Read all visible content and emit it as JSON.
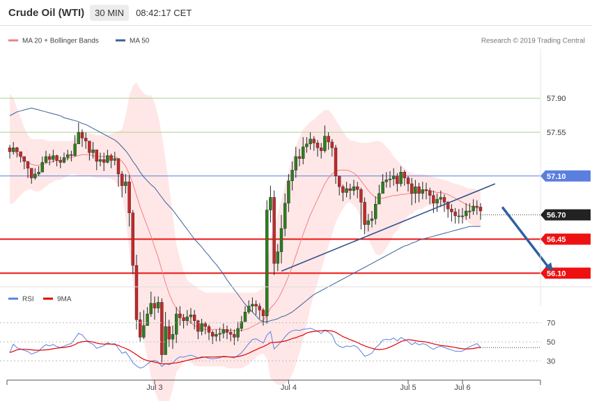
{
  "header": {
    "title": "Crude Oil (WTI)",
    "timeframe": "30 MIN",
    "time": "08:42:17 CET"
  },
  "legend": {
    "items": [
      {
        "label": "MA 20 + Bollinger Bands",
        "color": "#f08080"
      },
      {
        "label": "MA 50",
        "color": "#3a5f9a"
      }
    ],
    "credit": "Research © 2019 Trading Central"
  },
  "rsi_legend": {
    "items": [
      {
        "label": "RSI",
        "color": "#5b7fde"
      },
      {
        "label": "9MA",
        "color": "#e00000"
      }
    ]
  },
  "chart_data": {
    "type": "candlestick",
    "price_axis": {
      "range": [
        55.83,
        58.41
      ],
      "levels": [
        {
          "label": "57.90",
          "value": 57.9,
          "style": "green"
        },
        {
          "label": "57.55",
          "value": 57.55,
          "style": "green"
        },
        {
          "label": "57.10",
          "value": 57.1,
          "style": "blue"
        },
        {
          "label": "56.70",
          "value": 56.7,
          "style": "current"
        },
        {
          "label": "56.45",
          "value": 56.45,
          "style": "red"
        },
        {
          "label": "56.10",
          "value": 56.1,
          "style": "red"
        }
      ]
    },
    "rsi_axis": {
      "range": [
        15,
        85
      ],
      "ticks": [
        "70",
        "50",
        "30"
      ],
      "tick_values": [
        70,
        50,
        30
      ]
    },
    "x_labels": [
      {
        "label": "Jul 3",
        "bar": 40
      },
      {
        "label": "Jul 4",
        "bar": 77
      },
      {
        "label": "Jul 5",
        "bar": 110
      },
      {
        "label": "Jul 6",
        "bar": 125
      }
    ],
    "candle_close": [
      57.35,
      57.39,
      57.35,
      57.3,
      57.25,
      57.18,
      57.08,
      57.12,
      57.14,
      57.24,
      57.3,
      57.27,
      57.31,
      57.26,
      57.24,
      57.29,
      57.32,
      57.31,
      57.43,
      57.55,
      57.49,
      57.46,
      57.34,
      57.37,
      57.25,
      57.27,
      57.24,
      57.31,
      57.26,
      57.28,
      57.12,
      57.0,
      57.04,
      56.72,
      56.18,
      55.62,
      55.44,
      55.56,
      55.68,
      55.79,
      55.74,
      55.8,
      55.26,
      55.55,
      55.42,
      55.47,
      55.68,
      55.64,
      55.61,
      55.65,
      55.67,
      55.61,
      55.5,
      55.58,
      55.55,
      55.49,
      55.45,
      55.47,
      55.48,
      55.52,
      55.49,
      55.47,
      55.44,
      55.53,
      55.6,
      55.7,
      55.76,
      55.78,
      55.76,
      55.72,
      55.66,
      56.75,
      56.88,
      56.2,
      56.32,
      56.56,
      56.82,
      57.05,
      57.16,
      57.3,
      57.28,
      57.4,
      57.43,
      57.48,
      57.44,
      57.39,
      57.36,
      57.51,
      57.45,
      57.39,
      57.1,
      56.99,
      56.93,
      56.97,
      56.95,
      56.99,
      56.96,
      56.83,
      56.6,
      56.64,
      56.66,
      56.81,
      56.92,
      57.04,
      57.06,
      57.07,
      57.1,
      57.02,
      57.14,
      57.08,
      57.02,
      56.92,
      56.99,
      56.92,
      56.96,
      56.95,
      56.9,
      56.82,
      56.86,
      56.88,
      56.83,
      56.76,
      56.73,
      56.69,
      56.69,
      56.69,
      56.74,
      56.74,
      56.79,
      56.78,
      56.74
    ],
    "candle_high": [
      57.42,
      57.45,
      57.4,
      57.35,
      57.3,
      57.23,
      57.15,
      57.18,
      57.2,
      57.3,
      57.36,
      57.33,
      57.37,
      57.32,
      57.3,
      57.34,
      57.37,
      57.36,
      57.52,
      57.65,
      57.58,
      57.55,
      57.42,
      57.45,
      57.32,
      57.34,
      57.34,
      57.37,
      57.33,
      57.35,
      57.2,
      57.15,
      57.12,
      57.11,
      56.75,
      56.29,
      55.7,
      55.72,
      55.75,
      55.91,
      55.86,
      55.86,
      55.84,
      55.7,
      55.62,
      55.56,
      55.75,
      55.76,
      55.68,
      55.72,
      55.74,
      55.72,
      55.62,
      55.63,
      55.6,
      55.57,
      55.51,
      55.52,
      55.54,
      55.58,
      55.56,
      55.53,
      55.52,
      55.6,
      55.66,
      55.76,
      55.82,
      55.85,
      55.82,
      55.79,
      55.74,
      56.85,
      57.0,
      56.95,
      56.4,
      56.7,
      56.92,
      57.12,
      57.25,
      57.4,
      57.38,
      57.5,
      57.5,
      57.55,
      57.51,
      57.47,
      57.44,
      57.62,
      57.55,
      57.48,
      57.42,
      57.1,
      57.01,
      57.04,
      57.02,
      57.06,
      57.04,
      56.98,
      56.88,
      56.71,
      56.74,
      56.89,
      57.01,
      57.12,
      57.14,
      57.15,
      57.18,
      57.13,
      57.2,
      57.16,
      57.1,
      57.08,
      57.06,
      57.03,
      57.04,
      57.03,
      56.98,
      56.95,
      56.92,
      56.95,
      56.91,
      56.84,
      56.81,
      56.77,
      56.76,
      56.77,
      56.82,
      56.82,
      56.86,
      56.85,
      56.82
    ],
    "candle_low": [
      57.28,
      57.32,
      57.29,
      57.24,
      57.17,
      57.08,
      57.02,
      57.06,
      57.1,
      57.16,
      57.23,
      57.21,
      57.24,
      57.2,
      57.18,
      57.23,
      57.26,
      57.25,
      57.3,
      57.44,
      57.4,
      57.38,
      57.26,
      57.28,
      57.16,
      57.2,
      57.15,
      57.23,
      57.18,
      57.21,
      56.99,
      56.88,
      56.92,
      56.58,
      56.09,
      55.52,
      55.39,
      55.42,
      55.6,
      55.65,
      55.62,
      55.69,
      55.18,
      55.3,
      55.34,
      55.32,
      55.38,
      55.56,
      55.53,
      55.56,
      55.58,
      55.52,
      55.42,
      55.46,
      55.47,
      55.41,
      55.37,
      55.4,
      55.4,
      55.43,
      55.42,
      55.4,
      55.36,
      55.4,
      55.5,
      55.62,
      55.68,
      55.7,
      55.67,
      55.63,
      55.56,
      55.58,
      56.62,
      56.08,
      56.12,
      56.2,
      56.48,
      56.73,
      56.95,
      57.08,
      57.2,
      57.22,
      57.34,
      57.37,
      57.36,
      57.3,
      57.28,
      57.34,
      57.37,
      57.3,
      57.02,
      56.9,
      56.84,
      56.88,
      56.86,
      56.9,
      56.87,
      56.55,
      56.5,
      56.53,
      56.57,
      56.6,
      56.85,
      56.95,
      56.98,
      56.98,
      57.0,
      56.94,
      56.99,
      57.0,
      56.94,
      56.8,
      56.82,
      56.83,
      56.86,
      56.86,
      56.81,
      56.72,
      56.73,
      56.78,
      56.73,
      56.67,
      56.63,
      56.61,
      56.61,
      56.61,
      56.65,
      56.66,
      56.7,
      56.7,
      56.65
    ],
    "ma20": [
      57.38,
      57.36,
      57.33,
      57.3,
      57.27,
      57.24,
      57.22,
      57.21,
      57.21,
      57.22,
      57.23,
      57.24,
      57.25,
      57.26,
      57.26,
      57.27,
      57.28,
      57.29,
      57.3,
      57.31,
      57.32,
      57.32,
      57.32,
      57.31,
      57.3,
      57.3,
      57.3,
      57.3,
      57.3,
      57.3,
      57.28,
      57.25,
      57.2,
      57.12,
      57.02,
      56.9,
      56.78,
      56.68,
      56.58,
      56.48,
      56.37,
      56.26,
      56.13,
      56.0,
      55.89,
      55.8,
      55.74,
      55.69,
      55.65,
      55.62,
      55.59,
      55.56,
      55.54,
      55.53,
      55.52,
      55.52,
      55.52,
      55.52,
      55.52,
      55.52,
      55.51,
      55.51,
      55.51,
      55.51,
      55.51,
      55.52,
      55.53,
      55.55,
      55.57,
      55.59,
      55.61,
      55.67,
      55.74,
      55.78,
      55.83,
      55.9,
      55.98,
      56.07,
      56.17,
      56.28,
      56.39,
      56.5,
      56.6,
      56.7,
      56.78,
      56.86,
      56.94,
      57.02,
      57.08,
      57.12,
      57.15,
      57.16,
      57.16,
      57.16,
      57.15,
      57.13,
      57.1,
      57.05,
      57.0,
      56.95,
      56.91,
      56.88,
      56.87,
      56.87,
      56.88,
      56.89,
      56.9,
      56.9,
      56.91,
      56.91,
      56.92,
      56.92,
      56.93,
      56.94,
      56.94,
      56.95,
      56.95,
      56.94,
      56.93,
      56.93,
      56.92,
      56.91,
      56.89,
      56.87,
      56.85,
      56.83,
      56.81,
      56.79,
      56.78,
      56.77,
      56.77
    ],
    "bb_upper": [
      57.95,
      57.9,
      57.8,
      57.7,
      57.6,
      57.52,
      57.48,
      57.48,
      57.48,
      57.48,
      57.47,
      57.46,
      57.46,
      57.46,
      57.46,
      57.46,
      57.46,
      57.46,
      57.48,
      57.52,
      57.54,
      57.54,
      57.54,
      57.53,
      57.52,
      57.52,
      57.52,
      57.52,
      57.53,
      57.55,
      57.56,
      57.58,
      57.72,
      57.92,
      58.03,
      58.06,
      58.0,
      57.95,
      57.93,
      57.93,
      57.85,
      57.72,
      57.52,
      57.28,
      57.0,
      56.7,
      56.4,
      56.25,
      56.12,
      56.03,
      56.0,
      55.97,
      55.94,
      55.92,
      55.9,
      55.9,
      55.9,
      55.9,
      55.9,
      55.9,
      55.9,
      55.9,
      55.9,
      55.9,
      55.9,
      55.9,
      55.9,
      55.9,
      55.9,
      55.92,
      55.95,
      56.12,
      56.46,
      56.58,
      56.71,
      56.85,
      57.0,
      57.15,
      57.28,
      57.4,
      57.5,
      57.58,
      57.62,
      57.66,
      57.68,
      57.72,
      57.75,
      57.78,
      57.78,
      57.74,
      57.68,
      57.62,
      57.56,
      57.5,
      57.47,
      57.46,
      57.45,
      57.44,
      57.44,
      57.44,
      57.45,
      57.46,
      57.46,
      57.44,
      57.4,
      57.36,
      57.3,
      57.26,
      57.22,
      57.18,
      57.15,
      57.13,
      57.12,
      57.12,
      57.12,
      57.11,
      57.1,
      57.09,
      57.08,
      57.07,
      57.06,
      57.05,
      57.03,
      57.02,
      57.01,
      57.0,
      56.98,
      56.97,
      56.97,
      56.96,
      56.95
    ],
    "bb_lower": [
      56.81,
      56.82,
      56.86,
      56.9,
      56.94,
      56.96,
      56.96,
      56.94,
      56.94,
      56.96,
      56.99,
      57.02,
      57.04,
      57.06,
      57.06,
      57.08,
      57.1,
      57.12,
      57.12,
      57.1,
      57.1,
      57.1,
      57.1,
      57.09,
      57.08,
      57.08,
      57.08,
      57.08,
      57.07,
      57.05,
      57.0,
      56.92,
      56.68,
      56.32,
      56.01,
      55.74,
      55.56,
      55.41,
      55.23,
      55.03,
      54.89,
      54.8,
      54.74,
      54.72,
      54.78,
      54.9,
      55.08,
      55.13,
      55.18,
      55.21,
      55.18,
      55.15,
      55.14,
      55.14,
      55.14,
      55.14,
      55.14,
      55.14,
      55.14,
      55.14,
      55.12,
      55.12,
      55.12,
      55.12,
      55.12,
      55.14,
      55.16,
      55.2,
      55.24,
      55.26,
      55.27,
      55.22,
      55.02,
      54.98,
      54.95,
      54.95,
      54.96,
      54.99,
      55.06,
      55.16,
      55.28,
      55.42,
      55.58,
      55.74,
      55.88,
      56.0,
      56.13,
      56.26,
      56.38,
      56.5,
      56.62,
      56.7,
      56.76,
      56.82,
      56.83,
      56.8,
      56.75,
      56.66,
      56.56,
      56.46,
      56.37,
      56.3,
      56.28,
      56.3,
      56.36,
      56.42,
      56.5,
      56.54,
      56.6,
      56.64,
      56.69,
      56.71,
      56.74,
      56.76,
      56.76,
      56.79,
      56.8,
      56.79,
      56.78,
      56.79,
      56.78,
      56.77,
      56.75,
      56.72,
      56.69,
      56.66,
      56.64,
      56.61,
      56.59,
      56.58,
      56.59
    ],
    "ma50": [
      57.72,
      57.74,
      57.76,
      57.77,
      57.78,
      57.79,
      57.8,
      57.79,
      57.78,
      57.77,
      57.76,
      57.75,
      57.74,
      57.73,
      57.72,
      57.7,
      57.69,
      57.68,
      57.67,
      57.66,
      57.64,
      57.63,
      57.61,
      57.59,
      57.57,
      57.55,
      57.53,
      57.51,
      57.49,
      57.47,
      57.44,
      57.4,
      57.36,
      57.31,
      57.25,
      57.2,
      57.14,
      57.09,
      57.05,
      57.01,
      56.98,
      56.93,
      56.88,
      56.83,
      56.79,
      56.75,
      56.7,
      56.65,
      56.6,
      56.55,
      56.5,
      56.45,
      56.41,
      56.37,
      56.32,
      56.28,
      56.23,
      56.19,
      56.14,
      56.09,
      56.03,
      55.98,
      55.93,
      55.88,
      55.83,
      55.78,
      55.74,
      55.7,
      55.66,
      55.62,
      55.6,
      55.6,
      55.61,
      55.62,
      55.63,
      55.65,
      55.66,
      55.68,
      55.7,
      55.73,
      55.76,
      55.79,
      55.82,
      55.85,
      55.88,
      55.9,
      55.92,
      55.94,
      55.96,
      55.98,
      56.0,
      56.02,
      56.04,
      56.06,
      56.08,
      56.1,
      56.12,
      56.14,
      56.16,
      56.18,
      56.2,
      56.22,
      56.24,
      56.26,
      56.28,
      56.3,
      56.32,
      56.34,
      56.36,
      56.38,
      56.39,
      56.41,
      56.42,
      56.44,
      56.45,
      56.46,
      56.47,
      56.48,
      56.49,
      56.5,
      56.51,
      56.52,
      56.53,
      56.54,
      56.55,
      56.56,
      56.57,
      56.58,
      56.58,
      56.58,
      56.58
    ],
    "trendline_price": [
      {
        "bar": 75,
        "value": 56.12
      },
      {
        "bar": 134,
        "value": 57.02
      }
    ],
    "target_arrow_price": [
      {
        "bar": 136,
        "value": 56.78
      },
      {
        "bar": 150,
        "value": 56.12
      }
    ],
    "rsi": [
      39.0,
      47.5,
      43.8,
      42.4,
      41.0,
      39.8,
      37.2,
      38.6,
      40.1,
      44.3,
      47.0,
      45.7,
      47.2,
      45.0,
      44.0,
      45.5,
      47.2,
      48.2,
      53.6,
      58.8,
      57.3,
      52.8,
      48.9,
      47.5,
      43.2,
      44.5,
      46.0,
      49.1,
      47.5,
      48.2,
      43.1,
      38.0,
      39.5,
      34.2,
      28.1,
      24.8,
      22.5,
      23.7,
      26.8,
      29.8,
      30.5,
      28.8,
      24.2,
      27.3,
      26.0,
      27.8,
      31.9,
      34.3,
      33.9,
      35.2,
      36.0,
      34.8,
      33.0,
      34.3,
      33.8,
      32.8,
      32.1,
      32.8,
      33.2,
      35.0,
      34.5,
      33.9,
      33.2,
      35.8,
      38.6,
      43.3,
      48.2,
      52.4,
      53.1,
      51.0,
      48.7,
      56.9,
      60.8,
      42.5,
      46.2,
      50.3,
      55.1,
      59.3,
      61.5,
      62.4,
      61.9,
      63.2,
      63.4,
      64.3,
      62.7,
      61.0,
      58.7,
      62.1,
      60.1,
      57.3,
      48.5,
      45.3,
      44.0,
      45.7,
      44.9,
      46.2,
      44.4,
      39.8,
      34.8,
      36.2,
      38.1,
      43.9,
      47.0,
      51.9,
      52.6,
      52.1,
      54.0,
      51.0,
      54.6,
      52.5,
      50.3,
      47.0,
      49.1,
      46.9,
      48.0,
      47.2,
      44.2,
      42.1,
      44.4,
      45.5,
      44.2,
      42.6,
      41.5,
      40.2,
      40.0,
      40.3,
      42.8,
      44.8,
      46.5,
      48.2,
      44.2
    ],
    "rsi_ma": [
      38.8,
      40.0,
      41.6,
      42.2,
      42.2,
      42.0,
      41.6,
      41.2,
      41.2,
      41.3,
      41.6,
      42.0,
      42.8,
      43.3,
      43.8,
      44.1,
      44.8,
      45.6,
      47.1,
      49.2,
      50.1,
      50.6,
      50.4,
      49.8,
      48.7,
      47.9,
      47.6,
      47.8,
      47.6,
      47.2,
      46.2,
      44.5,
      43.1,
      41.3,
      39.0,
      36.5,
      33.8,
      31.6,
      30.4,
      29.5,
      28.7,
      27.9,
      27.0,
      26.9,
      27.2,
      27.6,
      28.0,
      28.7,
      29.6,
      30.6,
      31.4,
      32.3,
      32.9,
      33.7,
      34.0,
      34.1,
      34.1,
      34.2,
      34.3,
      34.4,
      34.3,
      34.1,
      34.1,
      34.6,
      35.4,
      36.6,
      38.1,
      40.0,
      41.7,
      43.5,
      45.0,
      46.8,
      49.1,
      49.4,
      49.6,
      50.1,
      50.8,
      52.0,
      53.4,
      54.4,
      55.9,
      57.1,
      59.3,
      60.3,
      60.9,
      61.4,
      61.6,
      62.0,
      61.7,
      61.3,
      60.0,
      57.7,
      55.4,
      53.9,
      52.2,
      50.9,
      49.3,
      47.4,
      45.8,
      44.4,
      43.3,
      42.3,
      41.9,
      42.2,
      43.0,
      44.6,
      46.2,
      48.2,
      50.2,
      51.5,
      52.3,
      51.9,
      51.2,
      50.6,
      50.3,
      49.8,
      48.8,
      47.9,
      47.0,
      46.2,
      45.8,
      45.3,
      44.7,
      44.0,
      43.4,
      42.8,
      42.5,
      42.7,
      43.0,
      43.8,
      44.0
    ]
  }
}
